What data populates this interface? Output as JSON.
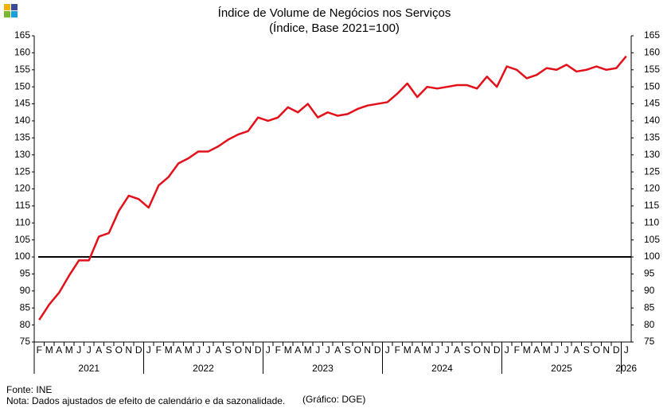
{
  "chart_data": {
    "type": "line",
    "title": "Índice de Volume de Negócios nos Serviços",
    "subtitle": "(Índice, Base 2021=100)",
    "categories": [
      "F",
      "M",
      "A",
      "M",
      "J",
      "J",
      "A",
      "S",
      "O",
      "N",
      "D",
      "J",
      "F",
      "M",
      "A",
      "M",
      "J",
      "J",
      "A",
      "S",
      "O",
      "N",
      "D",
      "J",
      "F",
      "M",
      "A",
      "M",
      "J",
      "J",
      "A",
      "S",
      "O",
      "N",
      "D",
      "J",
      "F",
      "M",
      "A",
      "M",
      "J",
      "J",
      "A",
      "S",
      "O",
      "N",
      "D",
      "J",
      "F",
      "M",
      "A",
      "M",
      "J",
      "J",
      "A",
      "S",
      "O",
      "N",
      "D",
      "J"
    ],
    "x_groups": [
      "2021",
      "2022",
      "2023",
      "2024",
      "2025",
      "2026"
    ],
    "series": [
      {
        "color": "#e3101a",
        "values": [
          81.5,
          86,
          89.5,
          94.5,
          99,
          99,
          106,
          107,
          113.5,
          118,
          117,
          114.5,
          121,
          123.5,
          127.5,
          129,
          131,
          131,
          132.5,
          134.5,
          136,
          137,
          141,
          140,
          141,
          144,
          142.5,
          145,
          141,
          142.5,
          141.5,
          142,
          143.5,
          144.5,
          145,
          145.5,
          148,
          151,
          147,
          150,
          149.5,
          150,
          150.5,
          150.5,
          149.5,
          153,
          150,
          156,
          155,
          152.5,
          153.5,
          155.5,
          155,
          156.5,
          154.5,
          155,
          156,
          155,
          155.5,
          159
        ]
      }
    ],
    "reference_line": 100,
    "ylim": [
      75,
      165
    ],
    "yticks": [
      75,
      80,
      85,
      90,
      95,
      100,
      105,
      110,
      115,
      120,
      125,
      130,
      135,
      140,
      145,
      150,
      155,
      160,
      165
    ],
    "source": "Fonte: INE",
    "note": "Nota: Dados  ajustados  de efeito de calendário e da sazonalidade.",
    "credit": "(Gráfico: DGE)"
  }
}
